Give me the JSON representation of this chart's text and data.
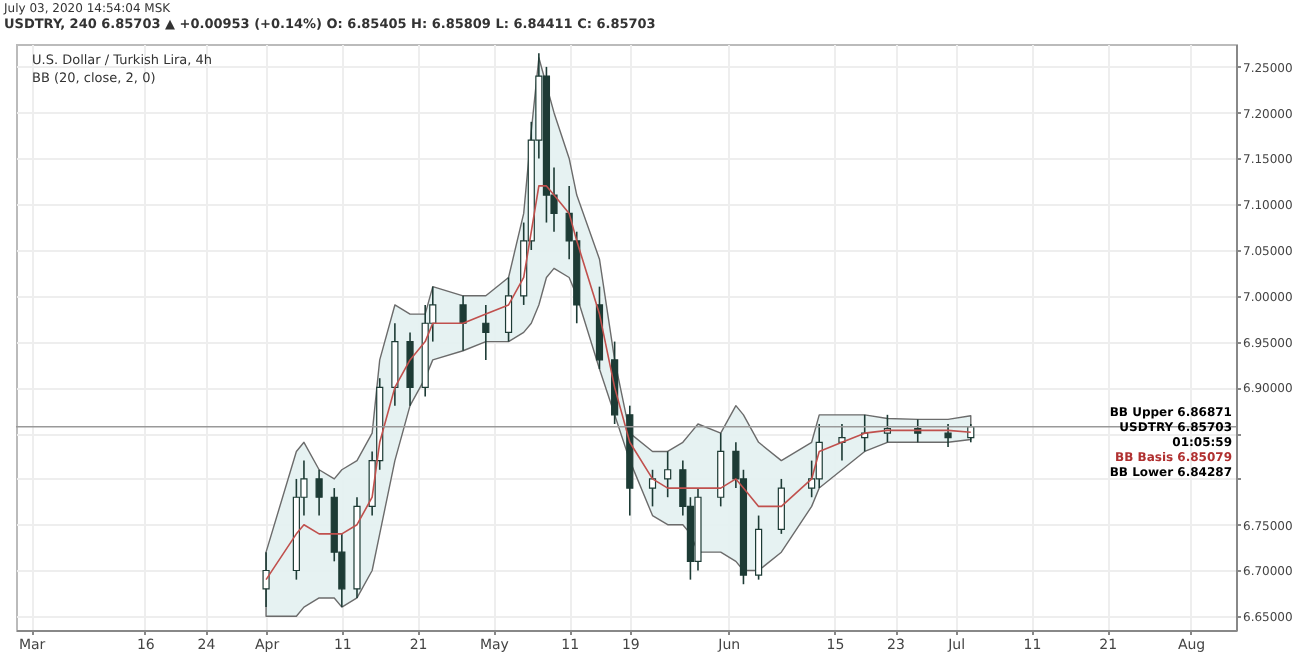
{
  "chart_data": {
    "type": "candlestick",
    "title": "U.S. Dollar / Turkish Lira, 4h",
    "subtitle": "BB (20, close, 2, 0)",
    "color": "#1d3b35",
    "x": [
      "2020-04-01",
      "2020-04-05",
      "2020-04-06",
      "2020-04-08",
      "2020-04-10",
      "2020-04-11",
      "2020-04-13",
      "2020-04-15",
      "2020-04-16",
      "2020-04-18",
      "2020-04-20",
      "2020-04-22",
      "2020-04-23",
      "2020-04-27",
      "2020-04-30",
      "2020-05-03",
      "2020-05-05",
      "2020-05-06",
      "2020-05-07",
      "2020-05-08",
      "2020-05-09",
      "2020-05-11",
      "2020-05-12",
      "2020-05-15",
      "2020-05-17",
      "2020-05-19",
      "2020-05-22",
      "2020-05-24",
      "2020-05-26",
      "2020-05-27",
      "2020-05-28",
      "2020-05-31",
      "2020-06-02",
      "2020-06-03",
      "2020-06-05",
      "2020-06-08",
      "2020-06-12",
      "2020-06-13",
      "2020-06-16",
      "2020-06-19",
      "2020-06-22",
      "2020-06-26",
      "2020-06-30",
      "2020-07-03"
    ],
    "ohlc": [
      [
        6.68,
        6.72,
        6.66,
        6.7
      ],
      [
        6.7,
        6.8,
        6.69,
        6.78
      ],
      [
        6.78,
        6.82,
        6.76,
        6.8
      ],
      [
        6.8,
        6.81,
        6.76,
        6.78
      ],
      [
        6.78,
        6.79,
        6.71,
        6.72
      ],
      [
        6.72,
        6.74,
        6.66,
        6.68
      ],
      [
        6.68,
        6.78,
        6.67,
        6.77
      ],
      [
        6.77,
        6.83,
        6.76,
        6.82
      ],
      [
        6.82,
        6.91,
        6.81,
        6.9
      ],
      [
        6.9,
        6.97,
        6.88,
        6.95
      ],
      [
        6.95,
        6.96,
        6.88,
        6.9
      ],
      [
        6.9,
        6.99,
        6.89,
        6.97
      ],
      [
        6.97,
        7.01,
        6.95,
        6.99
      ],
      [
        6.99,
        7.0,
        6.94,
        6.97
      ],
      [
        6.97,
        6.99,
        6.93,
        6.96
      ],
      [
        6.96,
        7.02,
        6.95,
        7.0
      ],
      [
        7.0,
        7.08,
        6.99,
        7.06
      ],
      [
        7.06,
        7.19,
        7.05,
        7.17
      ],
      [
        7.17,
        7.265,
        7.15,
        7.24
      ],
      [
        7.24,
        7.25,
        7.08,
        7.11
      ],
      [
        7.11,
        7.14,
        7.07,
        7.09
      ],
      [
        7.09,
        7.12,
        7.04,
        7.06
      ],
      [
        7.06,
        7.07,
        6.97,
        6.99
      ],
      [
        6.99,
        7.01,
        6.92,
        6.93
      ],
      [
        6.93,
        6.95,
        6.86,
        6.87
      ],
      [
        6.87,
        6.88,
        6.76,
        6.79
      ],
      [
        6.79,
        6.81,
        6.77,
        6.8
      ],
      [
        6.8,
        6.83,
        6.78,
        6.81
      ],
      [
        6.81,
        6.82,
        6.76,
        6.77
      ],
      [
        6.77,
        6.78,
        6.69,
        6.71
      ],
      [
        6.71,
        6.79,
        6.7,
        6.78
      ],
      [
        6.78,
        6.85,
        6.77,
        6.83
      ],
      [
        6.83,
        6.84,
        6.79,
        6.8
      ],
      [
        6.8,
        6.81,
        6.685,
        6.695
      ],
      [
        6.695,
        6.76,
        6.69,
        6.745
      ],
      [
        6.745,
        6.8,
        6.74,
        6.79
      ],
      [
        6.79,
        6.82,
        6.78,
        6.8
      ],
      [
        6.8,
        6.86,
        6.79,
        6.84
      ],
      [
        6.84,
        6.86,
        6.82,
        6.845
      ],
      [
        6.845,
        6.87,
        6.83,
        6.85
      ],
      [
        6.85,
        6.87,
        6.84,
        6.855
      ],
      [
        6.855,
        6.865,
        6.84,
        6.85
      ],
      [
        6.85,
        6.86,
        6.835,
        6.845
      ],
      [
        6.845,
        6.86,
        6.84,
        6.857
      ]
    ],
    "series": [
      {
        "type": "line",
        "color": "#c0504d",
        "values": [
          6.69,
          6.74,
          6.75,
          6.74,
          6.74,
          6.74,
          6.75,
          6.78,
          6.84,
          6.9,
          6.93,
          6.95,
          6.97,
          6.97,
          6.98,
          6.99,
          7.02,
          7.07,
          7.12,
          7.12,
          7.11,
          7.09,
          7.06,
          6.98,
          6.9,
          6.84,
          6.8,
          6.79,
          6.79,
          6.79,
          6.79,
          6.79,
          6.8,
          6.79,
          6.77,
          6.77,
          6.8,
          6.83,
          6.84,
          6.85,
          6.853,
          6.853,
          6.853,
          6.851
        ],
        "lower": [
          6.65,
          6.65,
          6.66,
          6.67,
          6.67,
          6.66,
          6.67,
          6.7,
          6.74,
          6.82,
          6.88,
          6.91,
          6.93,
          6.94,
          6.95,
          6.95,
          6.96,
          6.97,
          6.99,
          7.02,
          7.03,
          7.02,
          7.0,
          6.92,
          6.87,
          6.82,
          6.76,
          6.75,
          6.75,
          6.74,
          6.72,
          6.72,
          6.71,
          6.7,
          6.7,
          6.72,
          6.77,
          6.79,
          6.81,
          6.83,
          6.84,
          6.84,
          6.84,
          6.843
        ],
        "upper": [
          6.72,
          6.83,
          6.84,
          6.81,
          6.8,
          6.81,
          6.82,
          6.85,
          6.93,
          6.99,
          6.98,
          6.98,
          7.01,
          7.0,
          7.0,
          7.02,
          7.09,
          7.18,
          7.26,
          7.23,
          7.2,
          7.15,
          7.11,
          7.04,
          6.93,
          6.85,
          6.83,
          6.83,
          6.84,
          6.85,
          6.86,
          6.85,
          6.88,
          6.87,
          6.84,
          6.82,
          6.84,
          6.87,
          6.87,
          6.87,
          6.866,
          6.865,
          6.865,
          6.869
        ]
      }
    ],
    "xlim": [
      "2020-02-28",
      "2020-08-07"
    ],
    "xticks": [
      {
        "value": "2020-03-01",
        "label": "Mar"
      },
      {
        "value": "2020-03-16",
        "label": "16"
      },
      {
        "value": "2020-03-24",
        "label": "24"
      },
      {
        "value": "2020-04-01",
        "label": "Apr"
      },
      {
        "value": "2020-04-11",
        "label": "11"
      },
      {
        "value": "2020-04-21",
        "label": "21"
      },
      {
        "value": "2020-05-01",
        "label": "May"
      },
      {
        "value": "2020-05-11",
        "label": "11"
      },
      {
        "value": "2020-05-19",
        "label": "19"
      },
      {
        "value": "2020-06-01",
        "label": "Jun"
      },
      {
        "value": "2020-06-15",
        "label": "15"
      },
      {
        "value": "2020-06-23",
        "label": "23"
      },
      {
        "value": "2020-07-01",
        "label": "Jul"
      },
      {
        "value": "2020-07-11",
        "label": "11"
      },
      {
        "value": "2020-07-21",
        "label": "21"
      },
      {
        "value": "2020-08-01",
        "label": "Aug"
      }
    ],
    "ylim": [
      6.635,
      7.275
    ],
    "yticks": [
      {
        "value": 6.65,
        "label": "6.65000"
      },
      {
        "value": 6.7,
        "label": "6.70000"
      },
      {
        "value": 6.75,
        "label": "6.75000"
      },
      {
        "value": 6.8,
        "label": null
      },
      {
        "value": 6.85,
        "label": null
      },
      {
        "value": 6.9,
        "label": "6.90000"
      },
      {
        "value": 6.95,
        "label": "6.95000"
      },
      {
        "value": 7.0,
        "label": "7.00000"
      },
      {
        "value": 7.05,
        "label": "7.05000"
      },
      {
        "value": 7.1,
        "label": "7.10000"
      },
      {
        "value": 7.15,
        "label": "7.15000"
      },
      {
        "value": 7.2,
        "label": "7.20000"
      },
      {
        "value": 7.25,
        "label": "7.25000"
      }
    ],
    "grid": true,
    "ref_lines": [
      {
        "axis": "y",
        "value": 6.85703,
        "label": "USDTRY 6.85703",
        "color": "#999999"
      }
    ],
    "annotations": [
      "July 03, 2020 14:54:04 MSK",
      "USDTRY, 240 6.85703 ▲ +0.00953 (+0.14%) O: 6.85405 H: 6.85809 L: 6.84411 C: 6.85703",
      "BB Upper 6.86871",
      "01:05:59",
      "BB Basis 6.85079",
      "BB Lower 6.84287"
    ]
  }
}
